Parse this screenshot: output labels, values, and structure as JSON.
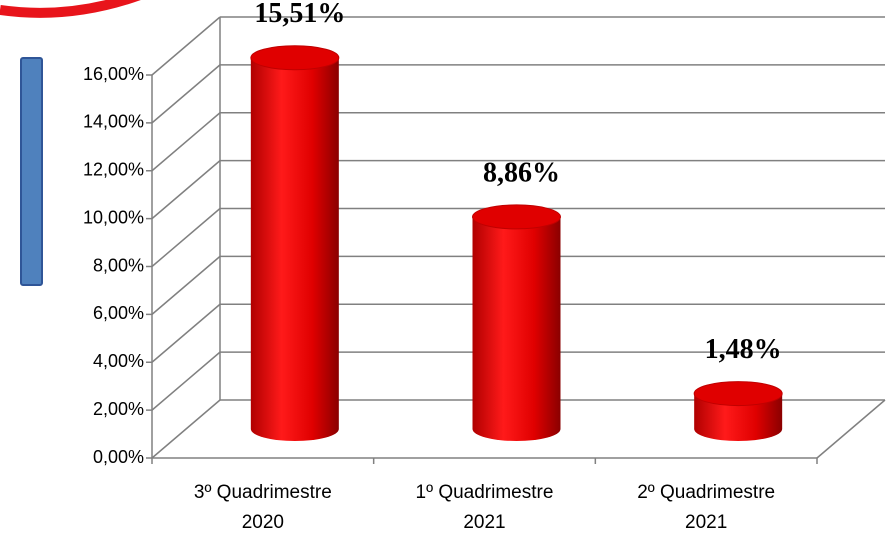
{
  "chart_data": {
    "type": "cylinder-bar",
    "categories": [
      "3º Quadrimestre 2020",
      "1º Quadrimestre 2021",
      "2º Quadrimestre 2021"
    ],
    "values": [
      15.51,
      8.86,
      1.48
    ],
    "value_labels": [
      "15,51%",
      "8,86%",
      "1,48%"
    ],
    "color": "#ff0000",
    "ylim": [
      0,
      16
    ],
    "yticks": [
      {
        "value": 0,
        "label": "0,00%"
      },
      {
        "value": 2,
        "label": "2,00%"
      },
      {
        "value": 4,
        "label": "4,00%"
      },
      {
        "value": 6,
        "label": "6,00%"
      },
      {
        "value": 8,
        "label": "8,00%"
      },
      {
        "value": 10,
        "label": "10,00%"
      },
      {
        "value": 12,
        "label": "12,00%"
      },
      {
        "value": 14,
        "label": "14,00%"
      },
      {
        "value": 16,
        "label": "16,00%"
      }
    ],
    "grid": true
  }
}
